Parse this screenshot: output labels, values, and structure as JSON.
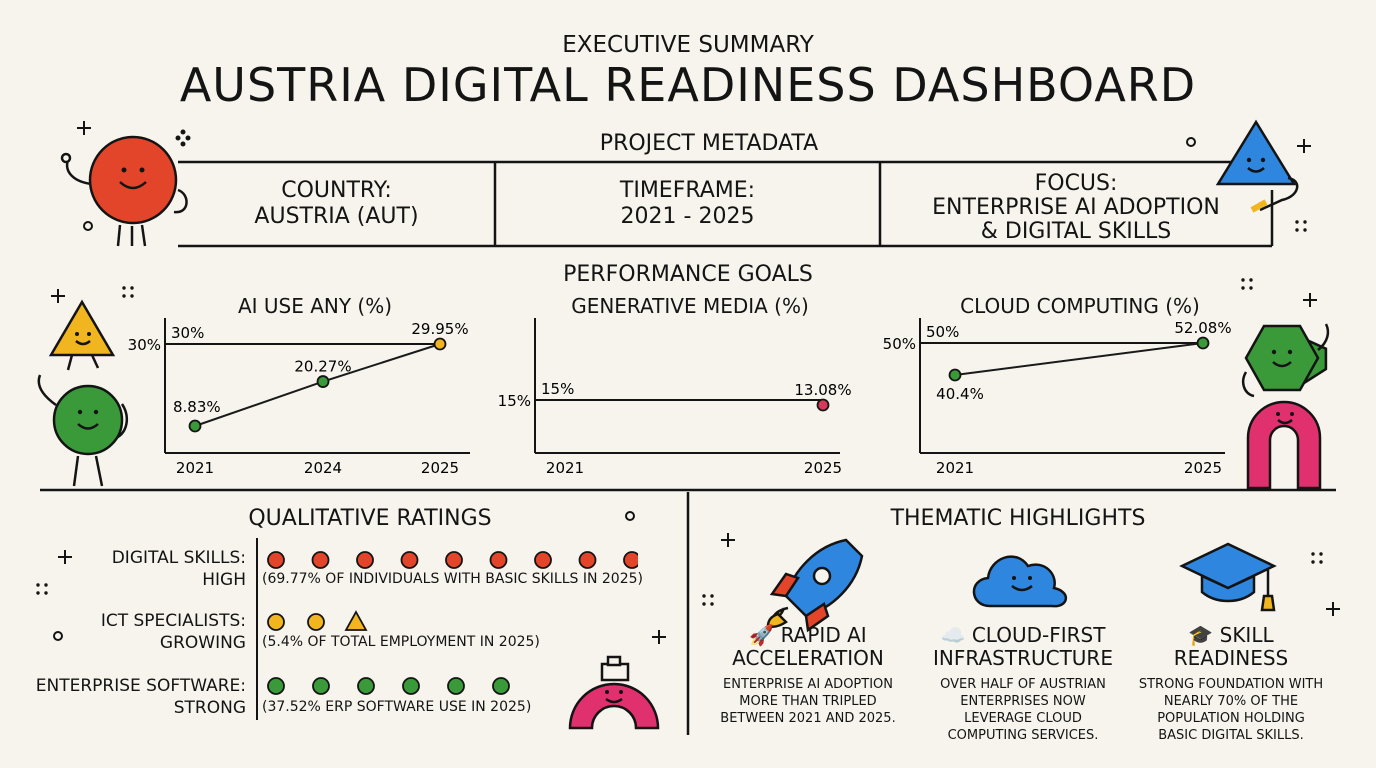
{
  "header": {
    "kicker": "EXECUTIVE SUMMARY",
    "title": "AUSTRIA DIGITAL READINESS DASHBOARD"
  },
  "metadata": {
    "section_title": "PROJECT METADATA",
    "country_label": "COUNTRY:",
    "country_value": "AUSTRIA (AUT)",
    "timeframe_label": "TIMEFRAME:",
    "timeframe_value": "2021 - 2025",
    "focus_label": "FOCUS:",
    "focus_line1": "ENTERPRISE AI ADOPTION",
    "focus_line2": "& DIGITAL SKILLS"
  },
  "goals": {
    "section_title": "PERFORMANCE GOALS"
  },
  "chart_data": [
    {
      "type": "line",
      "title": "AI USE ANY (%)",
      "x": [
        "2021",
        "2024",
        "2025"
      ],
      "values": [
        8.83,
        20.27,
        29.95
      ],
      "value_labels": [
        "8.83%",
        "20.27%",
        "29.95%"
      ],
      "target": 30,
      "target_label": "30%",
      "target_label_left": "30%",
      "line_color": "#1a1a1a",
      "point_colors": [
        "#3a9a3a",
        "#3a9a3a",
        "#f1b51f"
      ]
    },
    {
      "type": "line",
      "title": "GENERATIVE MEDIA (%)",
      "x": [
        "2021",
        "2025"
      ],
      "values": [
        null,
        13.08
      ],
      "value_labels": [
        "",
        "13.08%"
      ],
      "target": 15,
      "target_label": "15%",
      "target_label_left": "15%",
      "line_color": "#1a1a1a",
      "point_colors": [
        "#d43a5a",
        "#d43a5a"
      ]
    },
    {
      "type": "line",
      "title": "CLOUD COMPUTING (%)",
      "x": [
        "2021",
        "2025"
      ],
      "values": [
        40.4,
        52.08
      ],
      "value_labels": [
        "40.4%",
        "52.08%"
      ],
      "target": 50,
      "target_label": "50%",
      "target_label_left": "50%",
      "line_color": "#1a1a1a",
      "point_colors": [
        "#3a9a3a",
        "#3a9a3a"
      ]
    }
  ],
  "ratings": {
    "section_title": "QUALITATIVE RATINGS",
    "items": [
      {
        "label_line1": "DIGITAL SKILLS:",
        "label_line2": "HIGH",
        "note": "(69.77% OF INDIVIDUALS WITH BASIC SKILLS IN 2025)",
        "color": "#e3452b",
        "count": 9,
        "shape": "circle"
      },
      {
        "label_line1": "ICT SPECIALISTS:",
        "label_line2": "GROWING",
        "note": "(5.4% OF TOTAL EMPLOYMENT IN 2025)",
        "color": "#f1b51f",
        "count": 3,
        "shape": "circle-circle-triangle"
      },
      {
        "label_line1": "ENTERPRISE SOFTWARE:",
        "label_line2": "STRONG",
        "note": "(37.52% ERP SOFTWARE USE IN 2025)",
        "color": "#3a9a3a",
        "count": 6,
        "shape": "circle"
      }
    ]
  },
  "highlights": {
    "section_title": "THEMATIC HIGHLIGHTS",
    "items": [
      {
        "icon": "rocket-icon",
        "title_line1": "🚀 RAPID AI",
        "title_line2": "ACCELERATION",
        "body": [
          "ENTERPRISE AI ADOPTION",
          "MORE THAN TRIPLED",
          "BETWEEN 2021 AND 2025."
        ]
      },
      {
        "icon": "cloud-icon",
        "title_line1": "☁️ CLOUD-FIRST",
        "title_line2": "INFRASTRUCTURE",
        "body": [
          "OVER HALF OF AUSTRIAN",
          "ENTERPRISES NOW",
          "LEVERAGE CLOUD",
          "COMPUTING SERVICES."
        ]
      },
      {
        "icon": "graduation-cap-icon",
        "title_line1": "🎓 SKILL",
        "title_line2": "READINESS",
        "body": [
          "STRONG FOUNDATION WITH",
          "NEARLY 70% OF THE",
          "POPULATION HOLDING",
          "BASIC DIGITAL SKILLS."
        ]
      }
    ]
  },
  "colors": {
    "background": "#f6f4ec",
    "red": "#e3452b",
    "yellow": "#f1b51f",
    "green": "#3a9a3a",
    "blue": "#2f86de",
    "pink": "#e0316e"
  }
}
